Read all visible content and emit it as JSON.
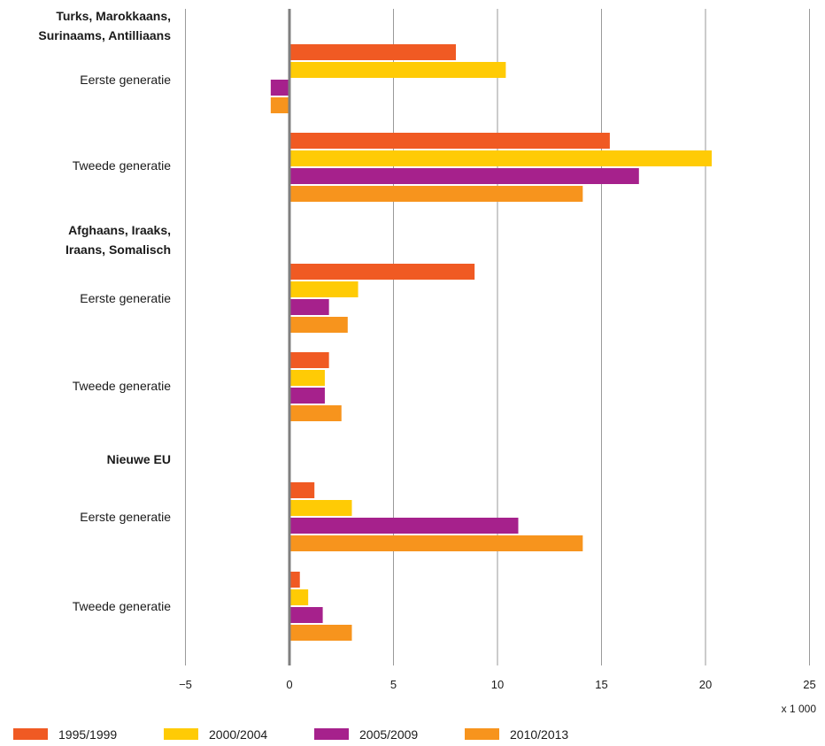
{
  "chart_data": {
    "type": "bar",
    "orientation": "horizontal",
    "xlim": [
      -5,
      25
    ],
    "x_ticks": [
      -5,
      0,
      5,
      10,
      15,
      20,
      25
    ],
    "x_tick_labels": [
      "−5",
      "0",
      "5",
      "10",
      "15",
      "20",
      "25"
    ],
    "x_unit": "x 1 000",
    "grid": true,
    "legend_position": "bottom",
    "series": [
      {
        "name": "1995/1999",
        "color": "#f05a23"
      },
      {
        "name": "2000/2004",
        "color": "#ffcb05"
      },
      {
        "name": "2005/2009",
        "color": "#a6218c"
      },
      {
        "name": "2010/2013",
        "color": "#f7941d"
      }
    ],
    "groups": [
      {
        "label_lines": [
          "Turks, Marokkaans,",
          "Surinaams, Antilliaans"
        ],
        "categories": [
          {
            "label": "Eerste generatie",
            "values": [
              8.0,
              10.4,
              -0.9,
              -0.9
            ]
          },
          {
            "label": "Tweede generatie",
            "values": [
              15.4,
              20.3,
              16.8,
              14.1
            ]
          }
        ]
      },
      {
        "label_lines": [
          "Afghaans, Iraaks,",
          "Iraans, Somalisch"
        ],
        "categories": [
          {
            "label": "Eerste generatie",
            "values": [
              8.9,
              3.3,
              1.9,
              2.8
            ]
          },
          {
            "label": "Tweede generatie",
            "values": [
              1.9,
              1.7,
              1.7,
              2.5
            ]
          }
        ]
      },
      {
        "label_lines": [
          "Nieuwe EU"
        ],
        "categories": [
          {
            "label": "Eerste generatie",
            "values": [
              1.2,
              3.0,
              11.0,
              14.1
            ]
          },
          {
            "label": "Tweede generatie",
            "values": [
              0.5,
              0.9,
              1.6,
              3.0
            ]
          }
        ]
      }
    ]
  }
}
